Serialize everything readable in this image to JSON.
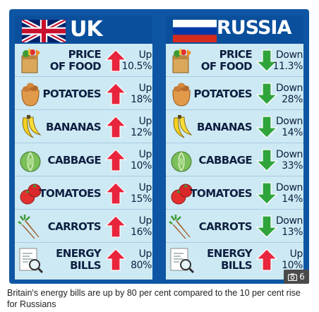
{
  "uk": {
    "title": "UK",
    "rows": [
      {
        "item": [
          "PRICE",
          "OF FOOD"
        ],
        "direction": "up",
        "change": [
          "Up",
          "10.5%"
        ],
        "icon": "grocery-bag-icon"
      },
      {
        "item": [
          "POTATOES"
        ],
        "direction": "up",
        "change": [
          "Up",
          "18%"
        ],
        "icon": "potato-sack-icon"
      },
      {
        "item": [
          "BANANAS"
        ],
        "direction": "up",
        "change": [
          "Up",
          "12%"
        ],
        "icon": "banana-icon"
      },
      {
        "item": [
          "CABBAGE"
        ],
        "direction": "up",
        "change": [
          "Up",
          "10%"
        ],
        "icon": "cabbage-icon"
      },
      {
        "item": [
          "TOMATOES"
        ],
        "direction": "up",
        "change": [
          "Up",
          "15%"
        ],
        "icon": "tomato-icon"
      },
      {
        "item": [
          "CARROTS"
        ],
        "direction": "up",
        "change": [
          "Up",
          "16%"
        ],
        "icon": "carrot-icon"
      },
      {
        "item": [
          "ENERGY",
          "BILLS"
        ],
        "direction": "up",
        "change": [
          "Up",
          "80%"
        ],
        "icon": "energy-bill-icon"
      }
    ]
  },
  "russia": {
    "title": "RUSSIA",
    "rows": [
      {
        "item": [
          "PRICE",
          "OF FOOD"
        ],
        "direction": "down",
        "change": [
          "Down",
          "11.3%"
        ],
        "icon": "grocery-bag-icon"
      },
      {
        "item": [
          "POTATOES"
        ],
        "direction": "down",
        "change": [
          "Down",
          "28%"
        ],
        "icon": "potato-sack-icon"
      },
      {
        "item": [
          "BANANAS"
        ],
        "direction": "down",
        "change": [
          "Down",
          "14%"
        ],
        "icon": "banana-icon"
      },
      {
        "item": [
          "CABBAGE"
        ],
        "direction": "down",
        "change": [
          "Down",
          "33%"
        ],
        "icon": "cabbage-icon"
      },
      {
        "item": [
          "TOMATOES"
        ],
        "direction": "down",
        "change": [
          "Down",
          "14%"
        ],
        "icon": "tomato-icon"
      },
      {
        "item": [
          "CARROTS"
        ],
        "direction": "down",
        "change": [
          "Down",
          "13%"
        ],
        "icon": "carrot-icon"
      },
      {
        "item": [
          "ENERGY",
          "BILLS"
        ],
        "direction": "up",
        "change": [
          "Up",
          "10%"
        ],
        "icon": "energy-bill-icon"
      }
    ]
  },
  "gallery": {
    "count": "6",
    "icon": "camera-icon"
  },
  "caption": "Britain's energy bills are up by 80 per cent compared to the 10 per cent rise for Russians",
  "colors": {
    "background": "#0e56a3",
    "panel": "#cde9f3",
    "up": "#e8253c",
    "down": "#2fa43b",
    "text": "#0e1f40"
  }
}
